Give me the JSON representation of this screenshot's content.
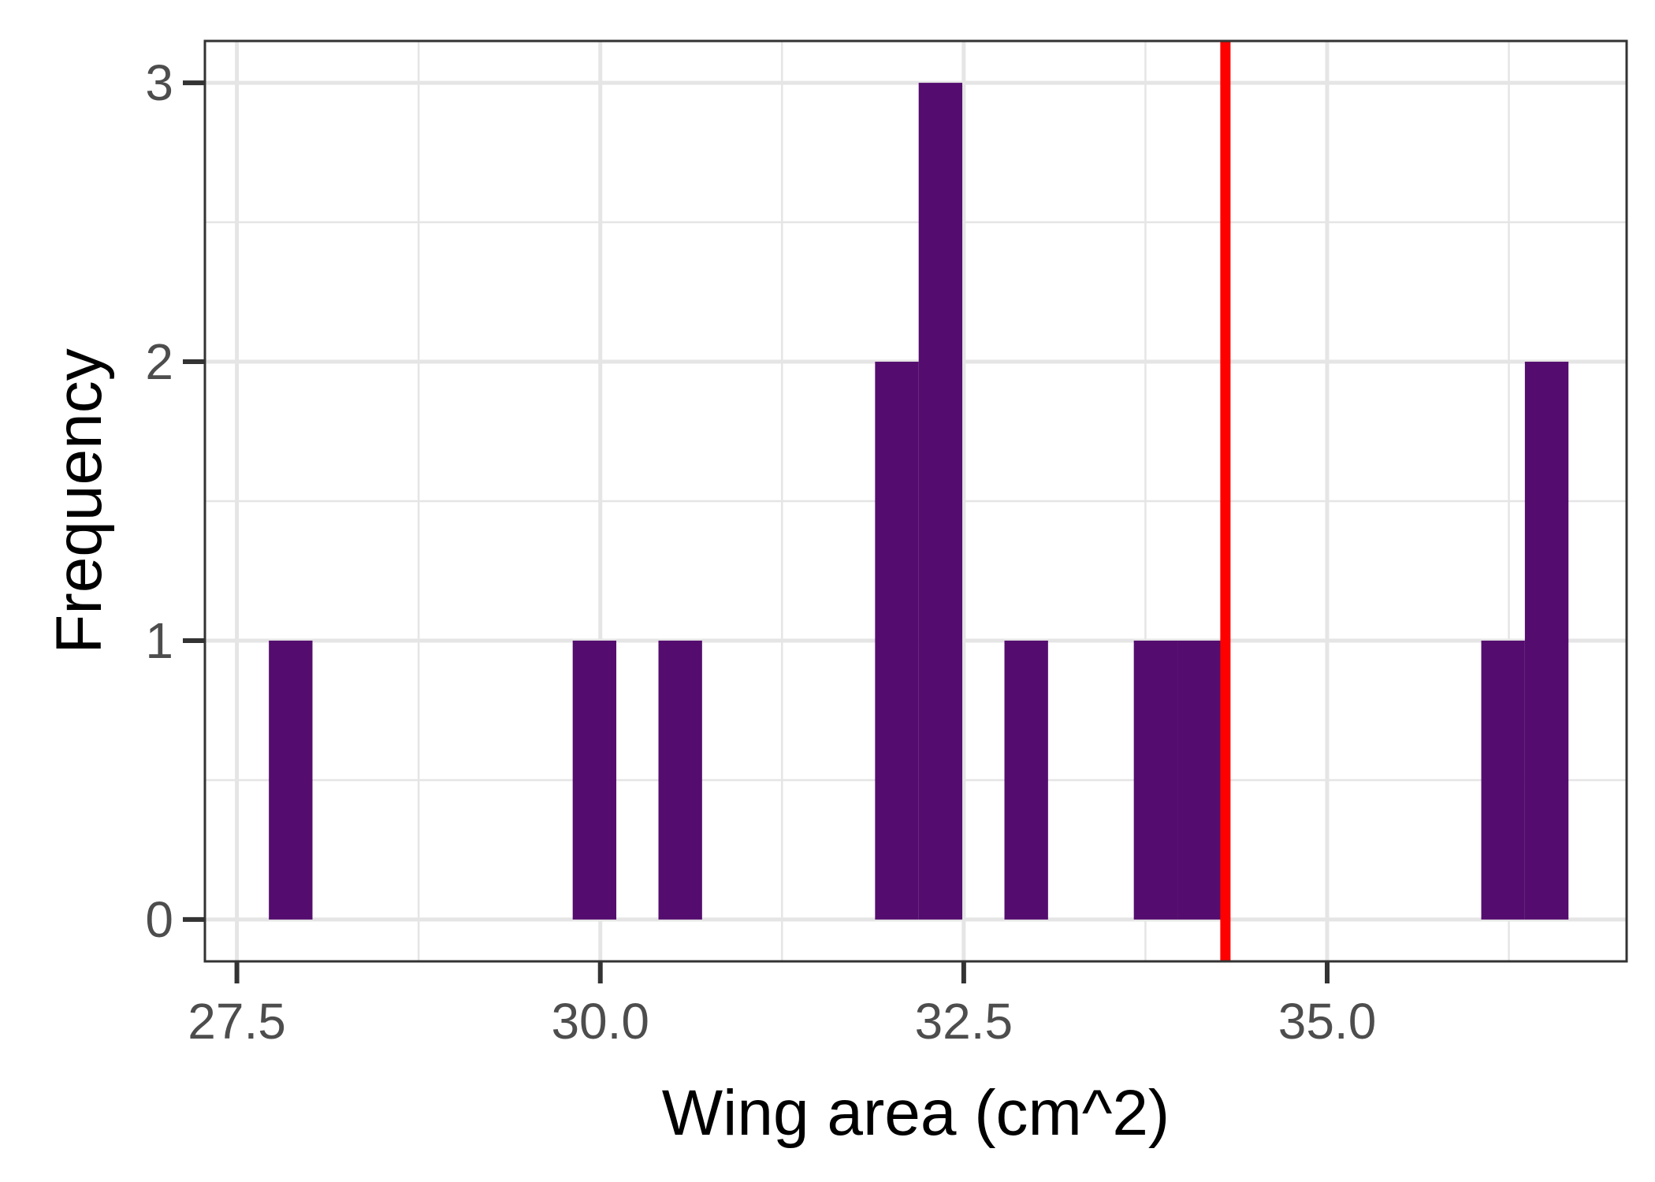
{
  "chart_data": {
    "type": "bar",
    "subtype": "histogram",
    "xlabel": "Wing area (cm^2)",
    "ylabel": "Frequency",
    "xlim": [
      27.28,
      37.06
    ],
    "ylim": [
      -0.15,
      3.15
    ],
    "x_ticks": [
      27.5,
      30.0,
      32.5,
      35.0
    ],
    "x_tick_labels": [
      "27.5",
      "30.0",
      "32.5",
      "35.0"
    ],
    "y_ticks": [
      0,
      1,
      2,
      3
    ],
    "y_tick_labels": [
      "0",
      "1",
      "2",
      "3"
    ],
    "x_minor_gridlines": [
      28.75,
      31.25,
      33.75,
      36.25
    ],
    "y_minor_gridlines": [
      0.5,
      1.5,
      2.5
    ],
    "bin_width": 0.3,
    "bins": [
      {
        "x0": 27.72,
        "x1": 28.02,
        "count": 1
      },
      {
        "x0": 29.81,
        "x1": 30.11,
        "count": 1
      },
      {
        "x0": 30.4,
        "x1": 30.7,
        "count": 1
      },
      {
        "x0": 31.89,
        "x1": 32.19,
        "count": 2
      },
      {
        "x0": 32.19,
        "x1": 32.49,
        "count": 3
      },
      {
        "x0": 32.78,
        "x1": 33.08,
        "count": 1
      },
      {
        "x0": 33.67,
        "x1": 33.97,
        "count": 1
      },
      {
        "x0": 33.97,
        "x1": 34.27,
        "count": 1
      },
      {
        "x0": 36.06,
        "x1": 36.36,
        "count": 1
      },
      {
        "x0": 36.36,
        "x1": 36.66,
        "count": 2
      }
    ],
    "reference_line": {
      "x": 34.3,
      "color": "#ff0000"
    },
    "bar_color": "#540d6e",
    "grid": true,
    "panel_border_color": "#333333",
    "grid_color": "#e5e5e5"
  }
}
